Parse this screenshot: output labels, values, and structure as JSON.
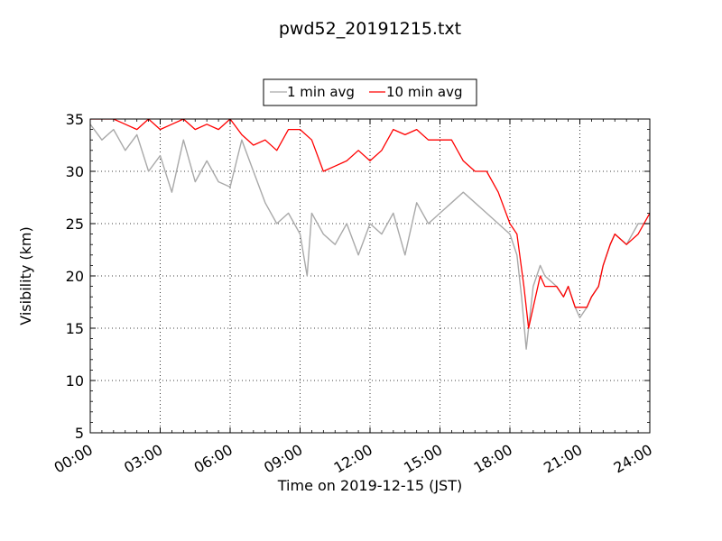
{
  "chart_data": {
    "type": "line",
    "title": "pwd52_20191215.txt",
    "xlabel": "Time on 2019-12-15 (JST)",
    "ylabel": "Visibility (km)",
    "xlim": [
      "00:00",
      "24:00"
    ],
    "ylim": [
      5,
      35
    ],
    "x_tick_labels": [
      "00:00",
      "03:00",
      "06:00",
      "09:00",
      "12:00",
      "15:00",
      "18:00",
      "21:00",
      "24:00"
    ],
    "y_tick_labels": [
      "5",
      "10",
      "15",
      "20",
      "25",
      "30",
      "35"
    ],
    "grid": true,
    "legend_position": "top-center",
    "x_unit": "hour of day",
    "series": [
      {
        "name": "1 min avg",
        "color": "#a9a9a9",
        "x": [
          0,
          0.5,
          1,
          1.5,
          2,
          2.5,
          3,
          3.5,
          4,
          4.5,
          5,
          5.5,
          6,
          6.5,
          7,
          7.5,
          8,
          8.5,
          9,
          9.3,
          9.5,
          10,
          10.5,
          11,
          11.5,
          12,
          12.5,
          13,
          13.5,
          14,
          14.5,
          15,
          15.5,
          16,
          16.5,
          17,
          17.5,
          18,
          18.3,
          18.5,
          18.7,
          19,
          19.3,
          19.5,
          20,
          20.3,
          20.5,
          20.8,
          21,
          21.3,
          21.5,
          21.8,
          22,
          22.3,
          22.5,
          23,
          23.5,
          24
        ],
        "y": [
          34.5,
          33,
          34,
          32,
          33.5,
          30,
          31.5,
          28,
          33,
          29,
          31,
          29,
          28.5,
          33,
          30,
          27,
          25,
          26,
          24,
          20,
          26,
          24,
          23,
          25,
          22,
          25,
          24,
          26,
          22,
          27,
          25,
          26,
          27,
          28,
          27,
          26,
          25,
          24,
          22,
          18,
          13,
          19,
          21,
          20,
          19,
          18,
          19,
          17,
          16,
          17,
          18,
          19,
          21,
          23,
          24,
          23,
          25,
          25
        ]
      },
      {
        "name": "10 min avg",
        "color": "#ff0000",
        "x": [
          0,
          0.5,
          1,
          1.5,
          2,
          2.5,
          3,
          3.5,
          4,
          4.5,
          5,
          5.5,
          6,
          6.5,
          7,
          7.5,
          8,
          8.5,
          9,
          9.5,
          10,
          10.5,
          11,
          11.5,
          12,
          12.5,
          13,
          13.5,
          14,
          14.5,
          15,
          15.5,
          16,
          16.5,
          17,
          17.5,
          18,
          18.3,
          18.6,
          18.8,
          19,
          19.3,
          19.5,
          20,
          20.3,
          20.5,
          20.8,
          21,
          21.3,
          21.5,
          21.8,
          22,
          22.3,
          22.5,
          23,
          23.5,
          24
        ],
        "y": [
          35,
          35,
          35,
          34.5,
          34,
          35,
          34,
          34.5,
          35,
          34,
          34.5,
          34,
          35,
          33.5,
          32.5,
          33,
          32,
          34,
          34,
          33,
          30,
          30.5,
          31,
          32,
          31,
          32,
          34,
          33.5,
          34,
          33,
          33,
          33,
          31,
          30,
          30,
          28,
          25,
          24,
          19,
          15,
          17,
          20,
          19,
          19,
          18,
          19,
          17,
          17,
          17,
          18,
          19,
          21,
          23,
          24,
          23,
          24,
          26
        ]
      }
    ]
  }
}
